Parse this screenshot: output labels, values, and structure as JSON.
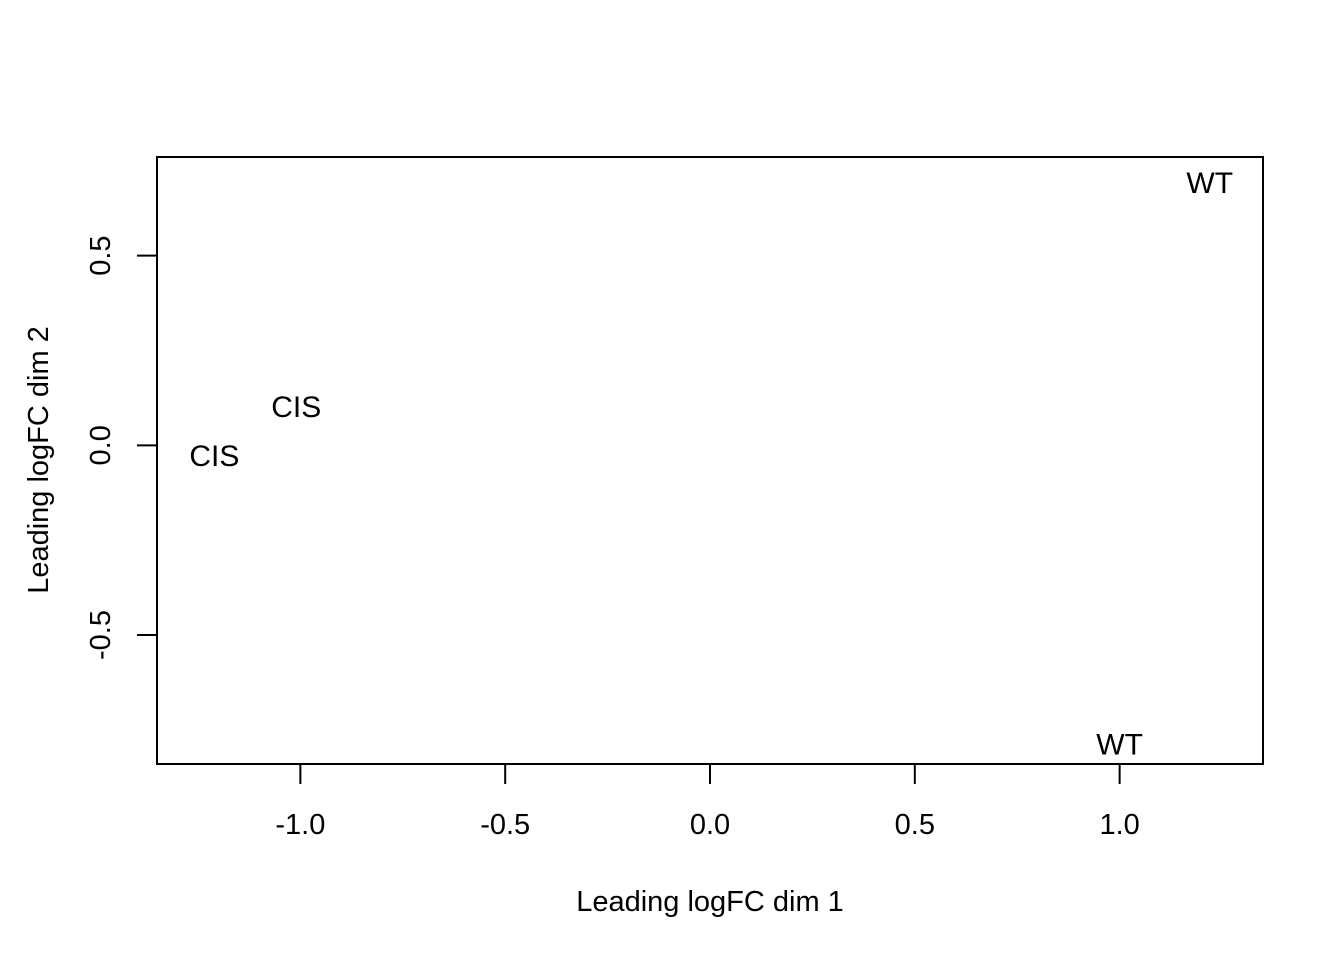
{
  "chart_data": {
    "type": "scatter",
    "title": "",
    "xlabel": "Leading logFC dim 1",
    "ylabel": "Leading logFC dim 2",
    "xlim": [
      -1.35,
      1.35
    ],
    "ylim": [
      -0.84,
      0.76
    ],
    "xticks": [
      -1.0,
      -0.5,
      0.0,
      0.5,
      1.0
    ],
    "xtick_labels": [
      "-1.0",
      "-0.5",
      "0.0",
      "0.5",
      "1.0"
    ],
    "yticks": [
      -0.5,
      0.0,
      0.5
    ],
    "ytick_labels": [
      "-0.5",
      "0.0",
      "0.5"
    ],
    "grid": false,
    "points": [
      {
        "x": -1.21,
        "y": -0.03,
        "label": "CIS"
      },
      {
        "x": -1.01,
        "y": 0.1,
        "label": "CIS"
      },
      {
        "x": 1.22,
        "y": 0.69,
        "label": "WT"
      },
      {
        "x": 1.0,
        "y": -0.79,
        "label": "WT"
      }
    ]
  }
}
